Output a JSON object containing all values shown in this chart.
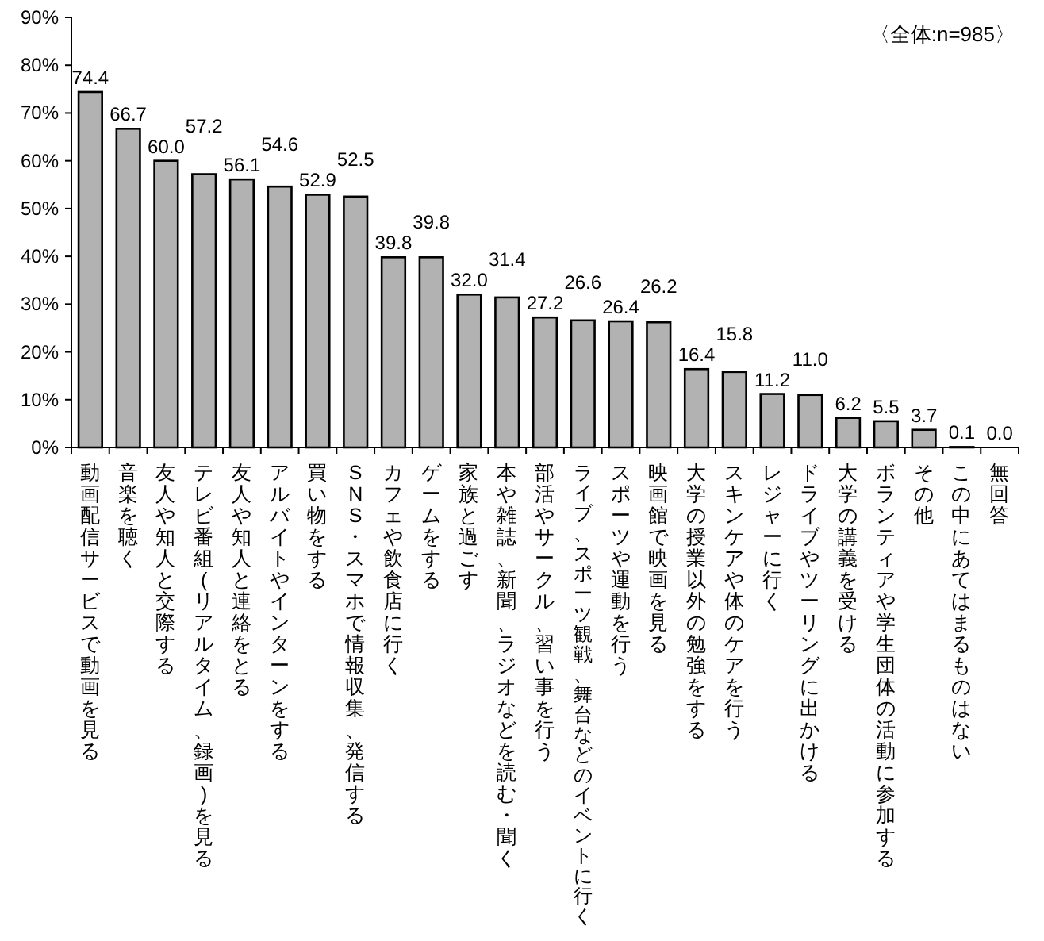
{
  "chart_data": {
    "type": "bar",
    "annotations": [
      "〈全体:n=985〉"
    ],
    "categories": [
      "動画配信サービスで動画を見る",
      "音楽を聴く",
      "友人や知人と交際する",
      "テレビ番組(リアルタイム、録画)を見る",
      "友人や知人と連絡をとる",
      "アルバイトやインターンをする",
      "買い物をする",
      "SNS・スマホで情報収集、発信する",
      "カフェや飲食店に行く",
      "ゲームをする",
      "家族と過ごす",
      "本や雑誌、新聞、ラジオなどを読む・聞く",
      "部活やサークル、習い事を行う",
      "ライブ、スポーツ観戦、舞台などのイベントに行く",
      "スポーツや運動を行う",
      "映画館で映画を見る",
      "大学の授業以外の勉強をする",
      "スキンケアや体のケアを行う",
      "レジャーに行く",
      "ドライブやツーリングに出かける",
      "大学の講義を受ける",
      "ボランティアや学生団体の活動に参加する",
      "その他",
      "この中にあてはまるものはない",
      "無回答"
    ],
    "values": [
      74.4,
      66.7,
      60.0,
      57.2,
      56.1,
      54.6,
      52.9,
      52.5,
      39.8,
      39.8,
      32.0,
      31.4,
      27.2,
      26.6,
      26.4,
      26.2,
      16.4,
      15.8,
      11.2,
      11.0,
      6.2,
      5.5,
      3.7,
      0.1,
      0.0
    ],
    "value_labels": [
      "74.4",
      "66.7",
      "60.0",
      "57.2",
      "56.1",
      "54.6",
      "52.9",
      "52.5",
      "39.8",
      "39.8",
      "32.0",
      "31.4",
      "27.2",
      "26.6",
      "26.4",
      "26.2",
      "16.4",
      "15.8",
      "11.2",
      "11.0",
      "6.2",
      "5.5",
      "3.7",
      "0.1",
      "0.0"
    ],
    "color": "#b2b2b2",
    "ylim": [
      0,
      90
    ],
    "yticks": [
      {
        "value": 0,
        "label": "0%"
      },
      {
        "value": 10,
        "label": "10%"
      },
      {
        "value": 20,
        "label": "20%"
      },
      {
        "value": 30,
        "label": "30%"
      },
      {
        "value": 40,
        "label": "40%"
      },
      {
        "value": 50,
        "label": "50%"
      },
      {
        "value": 60,
        "label": "60%"
      },
      {
        "value": 70,
        "label": "70%"
      },
      {
        "value": 80,
        "label": "80%"
      },
      {
        "value": 90,
        "label": "90%"
      }
    ],
    "grid": false
  }
}
